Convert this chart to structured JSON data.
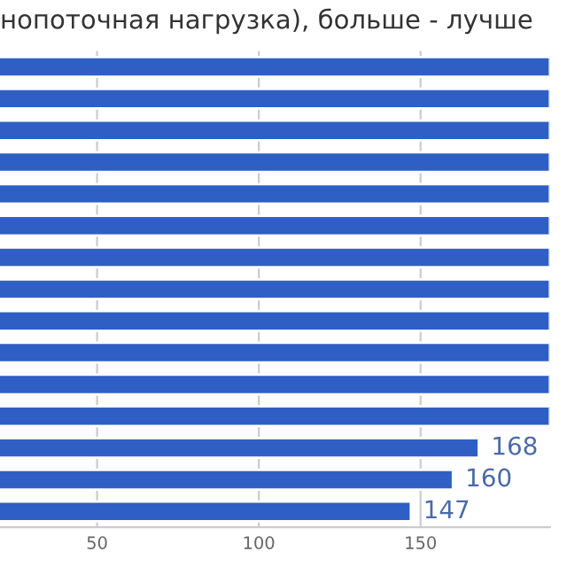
{
  "chart_data": {
    "type": "bar",
    "orientation": "horizontal",
    "title": "нопоточная нагрузка), больше - лучше",
    "categories": [
      null,
      null,
      null,
      null,
      null,
      null,
      null,
      null,
      null,
      null,
      null,
      null,
      null,
      null,
      null
    ],
    "values": [
      190,
      190,
      190,
      190,
      190,
      190,
      190,
      190,
      190,
      190,
      190,
      190,
      168,
      160,
      147
    ],
    "value_labels": [
      null,
      null,
      null,
      null,
      null,
      null,
      null,
      null,
      null,
      null,
      null,
      null,
      "168",
      "160",
      "147"
    ],
    "color": "#2f5fc4",
    "xlim": [
      20,
      190
    ],
    "xticks": [
      50,
      100,
      150
    ],
    "grid": "x",
    "legend": false
  }
}
